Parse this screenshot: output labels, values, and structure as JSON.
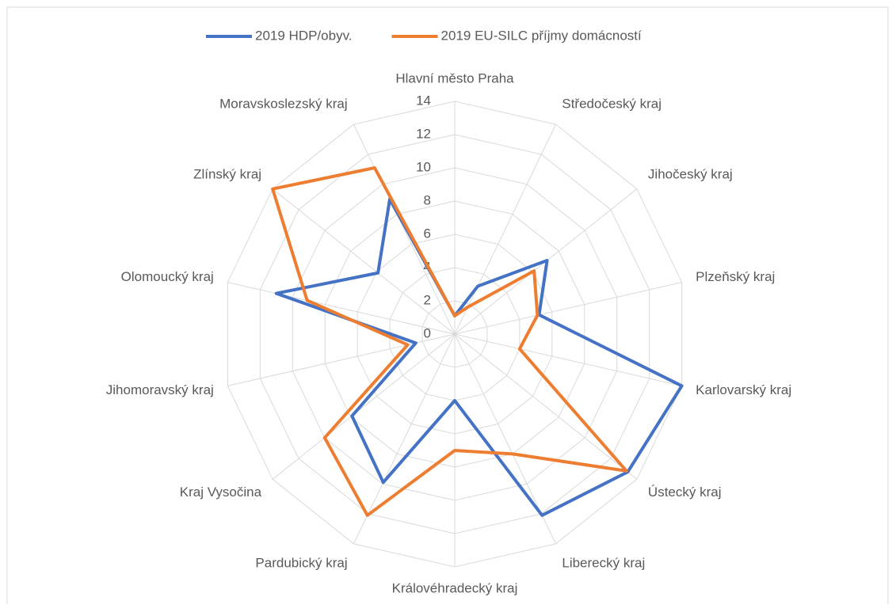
{
  "chart_data": {
    "type": "radar",
    "categories": [
      "Hlavní město Praha",
      "Středočeský kraj",
      "Jihočeský kraj",
      "Plzeňský kraj",
      "Karlovarský kraj",
      "Ústecký kraj",
      "Liberecký kraj",
      "Královéhradecký kraj",
      "Pardubický kraj",
      "Kraj Vysočina",
      "Jihomoravský kraj",
      "Olomoucký kraj",
      "Zlínský kraj",
      "Moravskoslezský kraj"
    ],
    "series": [
      {
        "name": "2019 HDP/obyv.",
        "color": "#4472c4",
        "values": [
          1.1,
          3.2,
          7.1,
          5.2,
          14.0,
          13.3,
          12.1,
          4.0,
          9.9,
          7.9,
          2.4,
          11.0,
          5.9,
          9.0
        ]
      },
      {
        "name": "2019 EU-SILC příjmy domácností",
        "color": "#ed7d31",
        "values": [
          1.1,
          1.8,
          6.1,
          5.1,
          4.0,
          13.2,
          8.0,
          7.0,
          12.1,
          10.0,
          2.9,
          9.1,
          14.0,
          11.1
        ]
      }
    ],
    "ylim": [
      0,
      14
    ],
    "yticks": [
      0,
      2,
      4,
      6,
      8,
      10,
      12,
      14
    ],
    "grid": true,
    "legend": "top"
  }
}
